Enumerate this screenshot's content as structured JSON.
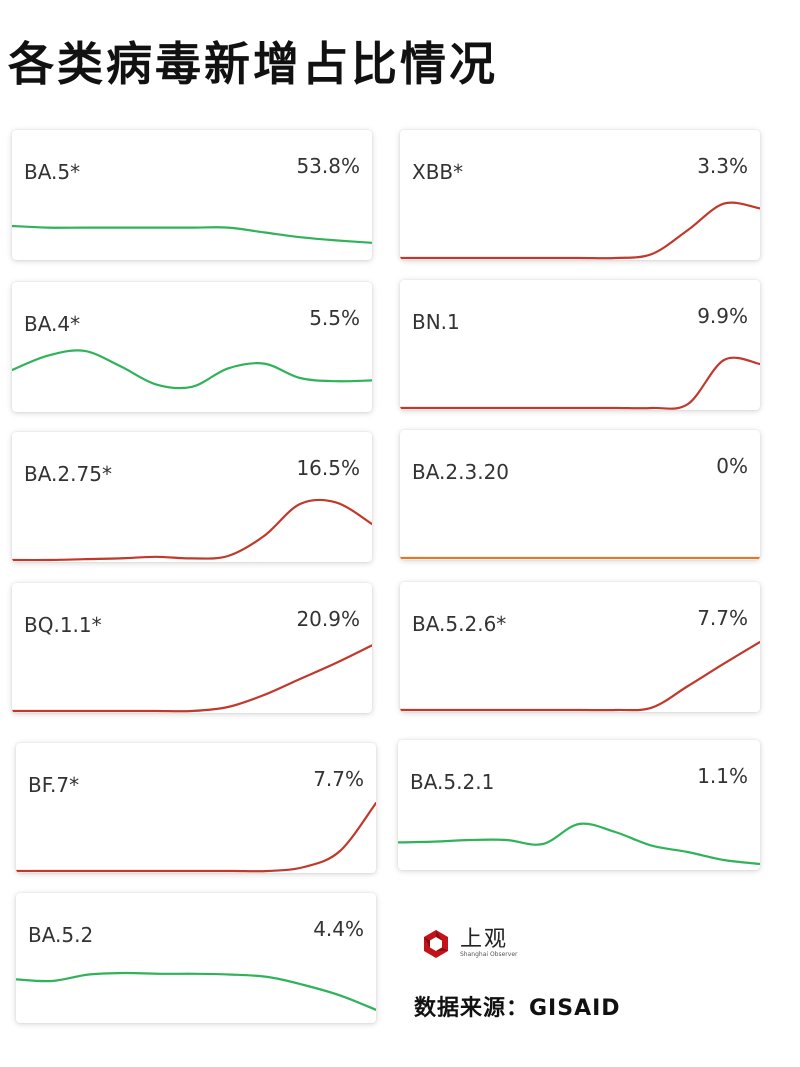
{
  "title": "各类病毒新增占比情况",
  "colors": {
    "up": "#c0392b",
    "down": "#2fb35a",
    "flat": "#e07a2b"
  },
  "chart_data": [
    {
      "type": "line",
      "name": "BA.5*",
      "percent": "53.8%",
      "trend": "down",
      "values": [
        0.4,
        0.38,
        0.38,
        0.38,
        0.38,
        0.38,
        0.38,
        0.32,
        0.26,
        0.22,
        0.19
      ]
    },
    {
      "type": "line",
      "name": "XBB*",
      "percent": "3.3%",
      "trend": "up",
      "values": [
        0,
        0,
        0,
        0,
        0,
        0,
        0,
        0.05,
        0.35,
        0.68,
        0.62
      ]
    },
    {
      "type": "line",
      "name": "BA.4*",
      "percent": "5.5%",
      "trend": "down",
      "values": [
        0.5,
        0.68,
        0.74,
        0.55,
        0.32,
        0.29,
        0.52,
        0.58,
        0.4,
        0.36,
        0.37
      ]
    },
    {
      "type": "line",
      "name": "BN.1",
      "percent": "9.9%",
      "trend": "up",
      "values": [
        0,
        0,
        0,
        0,
        0,
        0,
        0,
        0,
        0.05,
        0.6,
        0.55
      ]
    },
    {
      "type": "line",
      "name": "BA.2.75*",
      "percent": "16.5%",
      "trend": "up",
      "values": [
        0,
        0,
        0.01,
        0.02,
        0.04,
        0.02,
        0.05,
        0.3,
        0.7,
        0.72,
        0.45
      ]
    },
    {
      "type": "line",
      "name": "BA.2.3.20",
      "percent": "0%",
      "trend": "flat",
      "values": [
        0,
        0,
        0,
        0,
        0,
        0,
        0,
        0,
        0,
        0,
        0
      ]
    },
    {
      "type": "line",
      "name": "BQ.1.1*",
      "percent": "20.9%",
      "trend": "up",
      "values": [
        0,
        0,
        0,
        0,
        0,
        0,
        0.05,
        0.2,
        0.4,
        0.6,
        0.82
      ]
    },
    {
      "type": "line",
      "name": "BA.5.2.6*",
      "percent": "7.7%",
      "trend": "up",
      "values": [
        0,
        0,
        0,
        0,
        0,
        0,
        0,
        0.03,
        0.3,
        0.58,
        0.85
      ]
    },
    {
      "type": "line",
      "name": "BF.7*",
      "percent": "7.7%",
      "trend": "up",
      "values": [
        0,
        0,
        0,
        0,
        0,
        0,
        0,
        0,
        0.05,
        0.25,
        0.85
      ]
    },
    {
      "type": "line",
      "name": "BA.5.2.1",
      "percent": "1.1%",
      "trend": "down",
      "values": [
        0.32,
        0.33,
        0.35,
        0.35,
        0.3,
        0.55,
        0.45,
        0.28,
        0.2,
        0.1,
        0.05
      ]
    },
    {
      "type": "line",
      "name": "BA.5.2",
      "percent": "4.4%",
      "trend": "down",
      "values": [
        0.52,
        0.5,
        0.58,
        0.6,
        0.59,
        0.59,
        0.58,
        0.55,
        0.45,
        0.32,
        0.14
      ]
    }
  ],
  "logo": {
    "cn": "上观",
    "en": "Shanghai Observer"
  },
  "source": "数据来源：GISAID"
}
